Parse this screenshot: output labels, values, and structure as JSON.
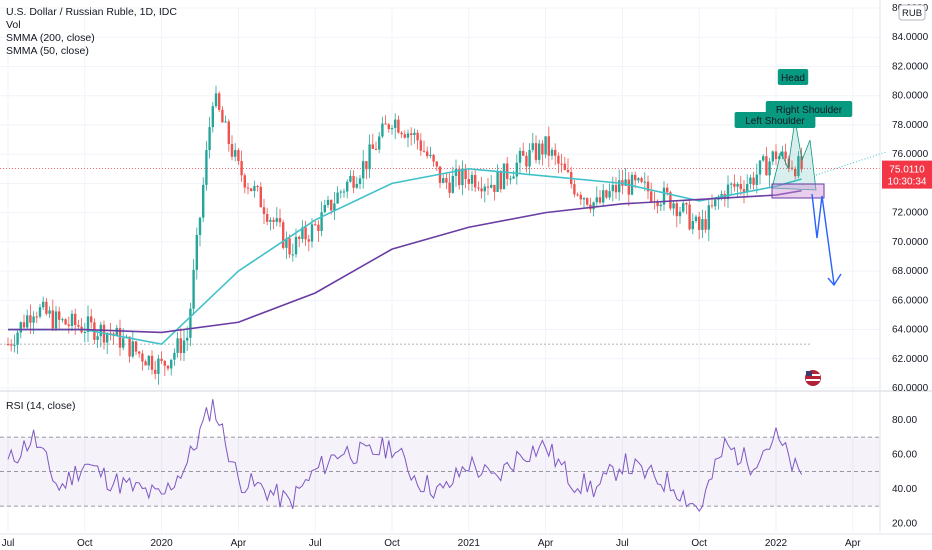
{
  "legend": {
    "symbol_line": "U.S. Dollar / Russian Ruble, 1D, IDC",
    "indicators": [
      "Vol",
      "SMMA (200, close)",
      "SMMA (50, close)"
    ]
  },
  "rsi_legend": "RSI (14, close)",
  "currency_badge": "RUB",
  "price_tag": {
    "value": "75.0110",
    "countdown": "10:30:34"
  },
  "colors": {
    "up": "#26a69a",
    "down": "#ef5350",
    "smma50": "#3fc1c9",
    "smma200": "#6a3da3",
    "rsi": "#7e57c2",
    "arrow": "#2962ff",
    "label": "#089981",
    "price": "#f23645"
  },
  "chart_data": [
    {
      "type": "candlestick",
      "title": "U.S. Dollar / Russian Ruble, 1D, IDC",
      "x_ticks": [
        "Jul",
        "Oct",
        "2020",
        "Apr",
        "Jul",
        "Oct",
        "2021",
        "Apr",
        "Jul",
        "Oct",
        "2022",
        "Apr"
      ],
      "y_ticks": [
        "60.0000",
        "62.0000",
        "64.0000",
        "66.0000",
        "68.0000",
        "70.0000",
        "72.0000",
        "74.0000",
        "76.0000",
        "78.0000",
        "80.0000",
        "82.0000",
        "84.0000",
        "86.0000"
      ],
      "ylim": [
        60,
        86
      ],
      "price_path_monthly": [
        [
          "Jul",
          63.0
        ],
        [
          "Aug",
          65.5
        ],
        [
          "Sep",
          64.5
        ],
        [
          "Oct",
          64.2
        ],
        [
          "Nov",
          63.8
        ],
        [
          "Dec",
          62.5
        ],
        [
          "Jan",
          61.5
        ],
        [
          "Feb",
          63.5
        ],
        [
          "Mar",
          80.0
        ],
        [
          "Apr",
          75.0
        ],
        [
          "May",
          72.5
        ],
        [
          "Jun",
          69.5
        ],
        [
          "Jul",
          71.0
        ],
        [
          "Aug",
          73.5
        ],
        [
          "Sep",
          75.5
        ],
        [
          "Oct",
          78.5
        ],
        [
          "Nov",
          77.0
        ],
        [
          "Dec",
          74.0
        ],
        [
          "Jan",
          74.5
        ],
        [
          "Feb",
          74.0
        ],
        [
          "Mar",
          75.5
        ],
        [
          "Apr",
          76.5
        ],
        [
          "May",
          74.0
        ],
        [
          "Jun",
          72.5
        ],
        [
          "Jul",
          74.0
        ],
        [
          "Aug",
          73.5
        ],
        [
          "Sep",
          72.8
        ],
        [
          "Oct",
          70.8
        ],
        [
          "Nov",
          73.5
        ],
        [
          "Dec",
          74.2
        ],
        [
          "Jan",
          76.0
        ],
        [
          "Feb",
          75.0
        ]
      ],
      "smma50_monthly": [
        [
          "Jul",
          64.0
        ],
        [
          "Oct",
          64.0
        ],
        [
          "Jan",
          63.0
        ],
        [
          "Apr",
          68.0
        ],
        [
          "Jul",
          71.5
        ],
        [
          "Oct",
          74.0
        ],
        [
          "Jan",
          75.0
        ],
        [
          "Apr",
          74.5
        ],
        [
          "Jul",
          74.0
        ],
        [
          "Oct",
          72.8
        ],
        [
          "Jan",
          73.8
        ],
        [
          "Feb",
          74.3
        ]
      ],
      "smma200_monthly": [
        [
          "Jul",
          64.0
        ],
        [
          "Oct",
          64.0
        ],
        [
          "Jan",
          63.8
        ],
        [
          "Apr",
          64.5
        ],
        [
          "Jul",
          66.5
        ],
        [
          "Oct",
          69.5
        ],
        [
          "Jan",
          71.0
        ],
        [
          "Apr",
          72.0
        ],
        [
          "Jul",
          72.6
        ],
        [
          "Oct",
          72.9
        ],
        [
          "Jan",
          73.2
        ],
        [
          "Feb",
          73.5
        ]
      ],
      "reference_line": 63.0,
      "current_price": 75.011,
      "annotations": [
        "Left Shoulder",
        "Head",
        "Right Shoulder"
      ]
    },
    {
      "type": "line",
      "title": "RSI (14, close)",
      "y_ticks": [
        "20.00",
        "40.00",
        "60.00",
        "80.00"
      ],
      "ylim": [
        15,
        95
      ],
      "bands": [
        30,
        50,
        70
      ],
      "rsi_monthly": [
        [
          "Jul",
          55
        ],
        [
          "Aug",
          70
        ],
        [
          "Sep",
          40
        ],
        [
          "Oct",
          55
        ],
        [
          "Nov",
          45
        ],
        [
          "Dec",
          40
        ],
        [
          "Jan",
          35
        ],
        [
          "Feb",
          55
        ],
        [
          "Mar",
          90
        ],
        [
          "Apr",
          45
        ],
        [
          "May",
          40
        ],
        [
          "Jun",
          32
        ],
        [
          "Jul",
          50
        ],
        [
          "Aug",
          62
        ],
        [
          "Sep",
          60
        ],
        [
          "Oct",
          65
        ],
        [
          "Nov",
          45
        ],
        [
          "Dec",
          38
        ],
        [
          "Jan",
          55
        ],
        [
          "Feb",
          45
        ],
        [
          "Mar",
          60
        ],
        [
          "Apr",
          65
        ],
        [
          "May",
          45
        ],
        [
          "Jun",
          40
        ],
        [
          "Jul",
          55
        ],
        [
          "Aug",
          48
        ],
        [
          "Sep",
          42
        ],
        [
          "Oct",
          28
        ],
        [
          "Nov",
          65
        ],
        [
          "Dec",
          55
        ],
        [
          "Jan",
          70
        ],
        [
          "Feb",
          45
        ]
      ]
    }
  ]
}
